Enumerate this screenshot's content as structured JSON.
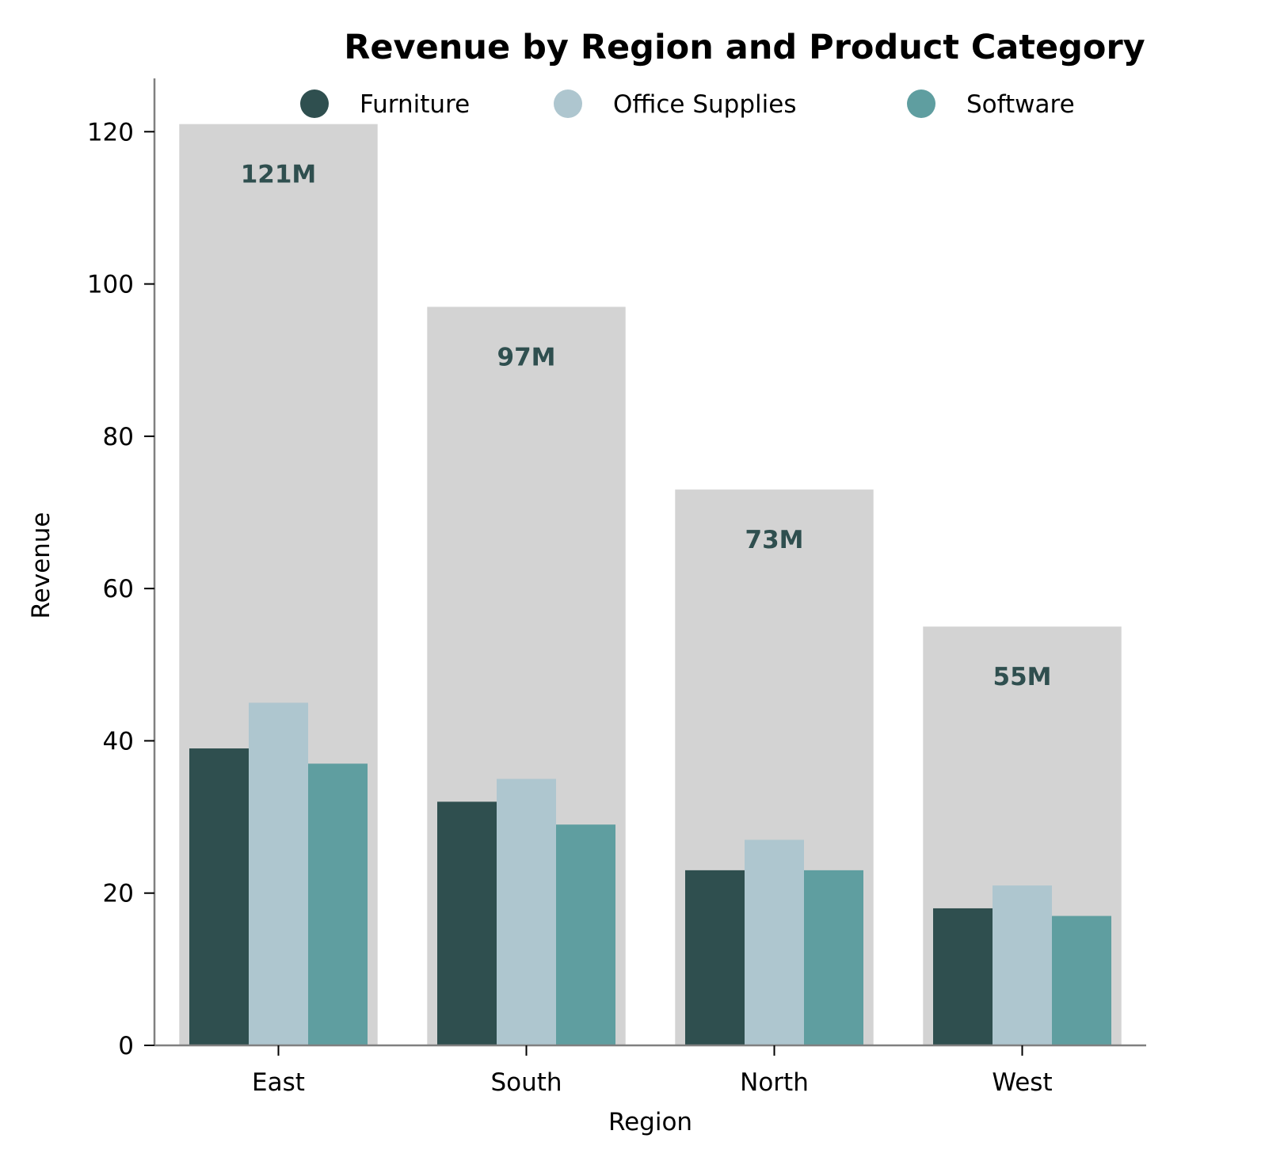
{
  "chart_data": {
    "type": "bar",
    "title": "Revenue by Region and Product Category",
    "xlabel": "Region",
    "ylabel": "Revenue",
    "ylim": [
      0,
      127
    ],
    "yticks": [
      0,
      20,
      40,
      60,
      80,
      100,
      120
    ],
    "grid": false,
    "legend_position": "top-center",
    "categories": [
      "East",
      "South",
      "North",
      "West"
    ],
    "totals": {
      "values": [
        121,
        97,
        73,
        55
      ],
      "labels": [
        "121M",
        "97M",
        "73M",
        "55M"
      ],
      "color": "#d3d3d3",
      "label_color": "#2f4f4f"
    },
    "series": [
      {
        "name": "Furniture",
        "values": [
          39,
          32,
          23,
          18
        ],
        "color": "#2f4f4f"
      },
      {
        "name": "Office Supplies",
        "values": [
          45,
          35,
          27,
          21
        ],
        "color": "#aec6cf"
      },
      {
        "name": "Software",
        "values": [
          37,
          29,
          23,
          17
        ],
        "color": "#5f9ea0"
      }
    ]
  }
}
